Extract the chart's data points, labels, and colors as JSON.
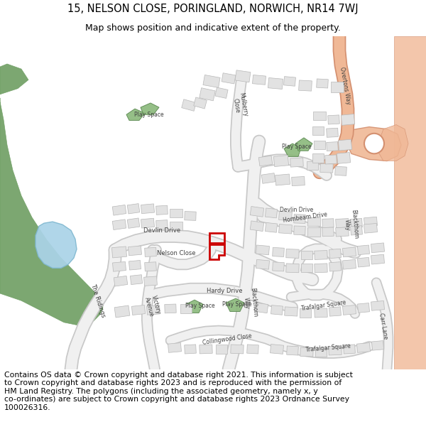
{
  "title_line1": "15, NELSON CLOSE, PORINGLAND, NORWICH, NR14 7WJ",
  "title_line2": "Map shows position and indicative extent of the property.",
  "footer": "Contains OS data © Crown copyright and database right 2021. This information is subject\nto Crown copyright and database rights 2023 and is reproduced with the permission of\nHM Land Registry. The polygons (including the associated geometry, namely x, y\nco-ordinates) are subject to Crown copyright and database rights 2023 Ordnance Survey\n100026316.",
  "map_bg": "#ffffff",
  "road_color": "#f0f0f0",
  "road_outline": "#c8c8c8",
  "building_color": "#e2e2e2",
  "building_outline": "#b8b8b8",
  "green_park_color": "#6e9e62",
  "play_space_color": "#8ab87a",
  "water_color": "#aad3e8",
  "highlight_color": "#cc0000",
  "main_road_color": "#f0b896",
  "main_road_outline": "#d49070",
  "text_color": "#404040",
  "title_fontsize": 10.5,
  "subtitle_fontsize": 9,
  "footer_fontsize": 7.8
}
